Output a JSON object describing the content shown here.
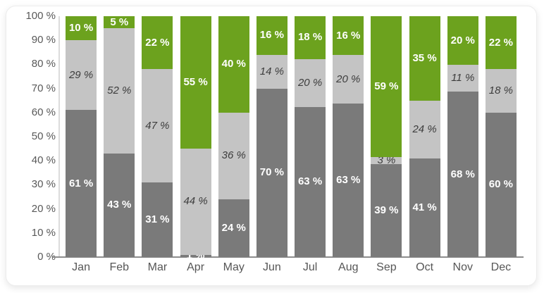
{
  "chart_data": {
    "type": "bar",
    "subtype": "stacked-100-percent",
    "title": "",
    "xlabel": "",
    "ylabel": "",
    "categories": [
      "Jan",
      "Feb",
      "Mar",
      "Apr",
      "May",
      "Jun",
      "Jul",
      "Aug",
      "Sep",
      "Oct",
      "Nov",
      "Dec"
    ],
    "series": [
      {
        "name": "bottom-dark-gray",
        "color": "#7A7A7A",
        "label_style": "bold-white",
        "values": [
          61,
          43,
          31,
          1,
          24,
          70,
          63,
          63,
          39,
          41,
          68,
          60
        ]
      },
      {
        "name": "middle-light-gray",
        "color": "#C4C4C4",
        "label_style": "italic-dark",
        "values": [
          29,
          52,
          47,
          44,
          36,
          14,
          20,
          20,
          3,
          24,
          11,
          18
        ]
      },
      {
        "name": "top-green",
        "color": "#6CA21E",
        "label_style": "bold-white",
        "values": [
          10,
          5,
          22,
          55,
          40,
          16,
          18,
          16,
          59,
          35,
          20,
          22
        ]
      }
    ],
    "value_suffix": " %",
    "y_ticks": [
      "100 %",
      "90 %",
      "80 %",
      "70 %",
      "60 %",
      "50 %",
      "40 %",
      "30 %",
      "20 %",
      "10 %",
      "0 %"
    ],
    "ylim": [
      0,
      100
    ],
    "grid": "off",
    "legend": "none"
  },
  "colors": {
    "card_border": "#ececec",
    "axis_line": "#dcdcdc",
    "baseline": "#8d8d8d",
    "tick_text": "#595959",
    "month_text": "#565656"
  }
}
